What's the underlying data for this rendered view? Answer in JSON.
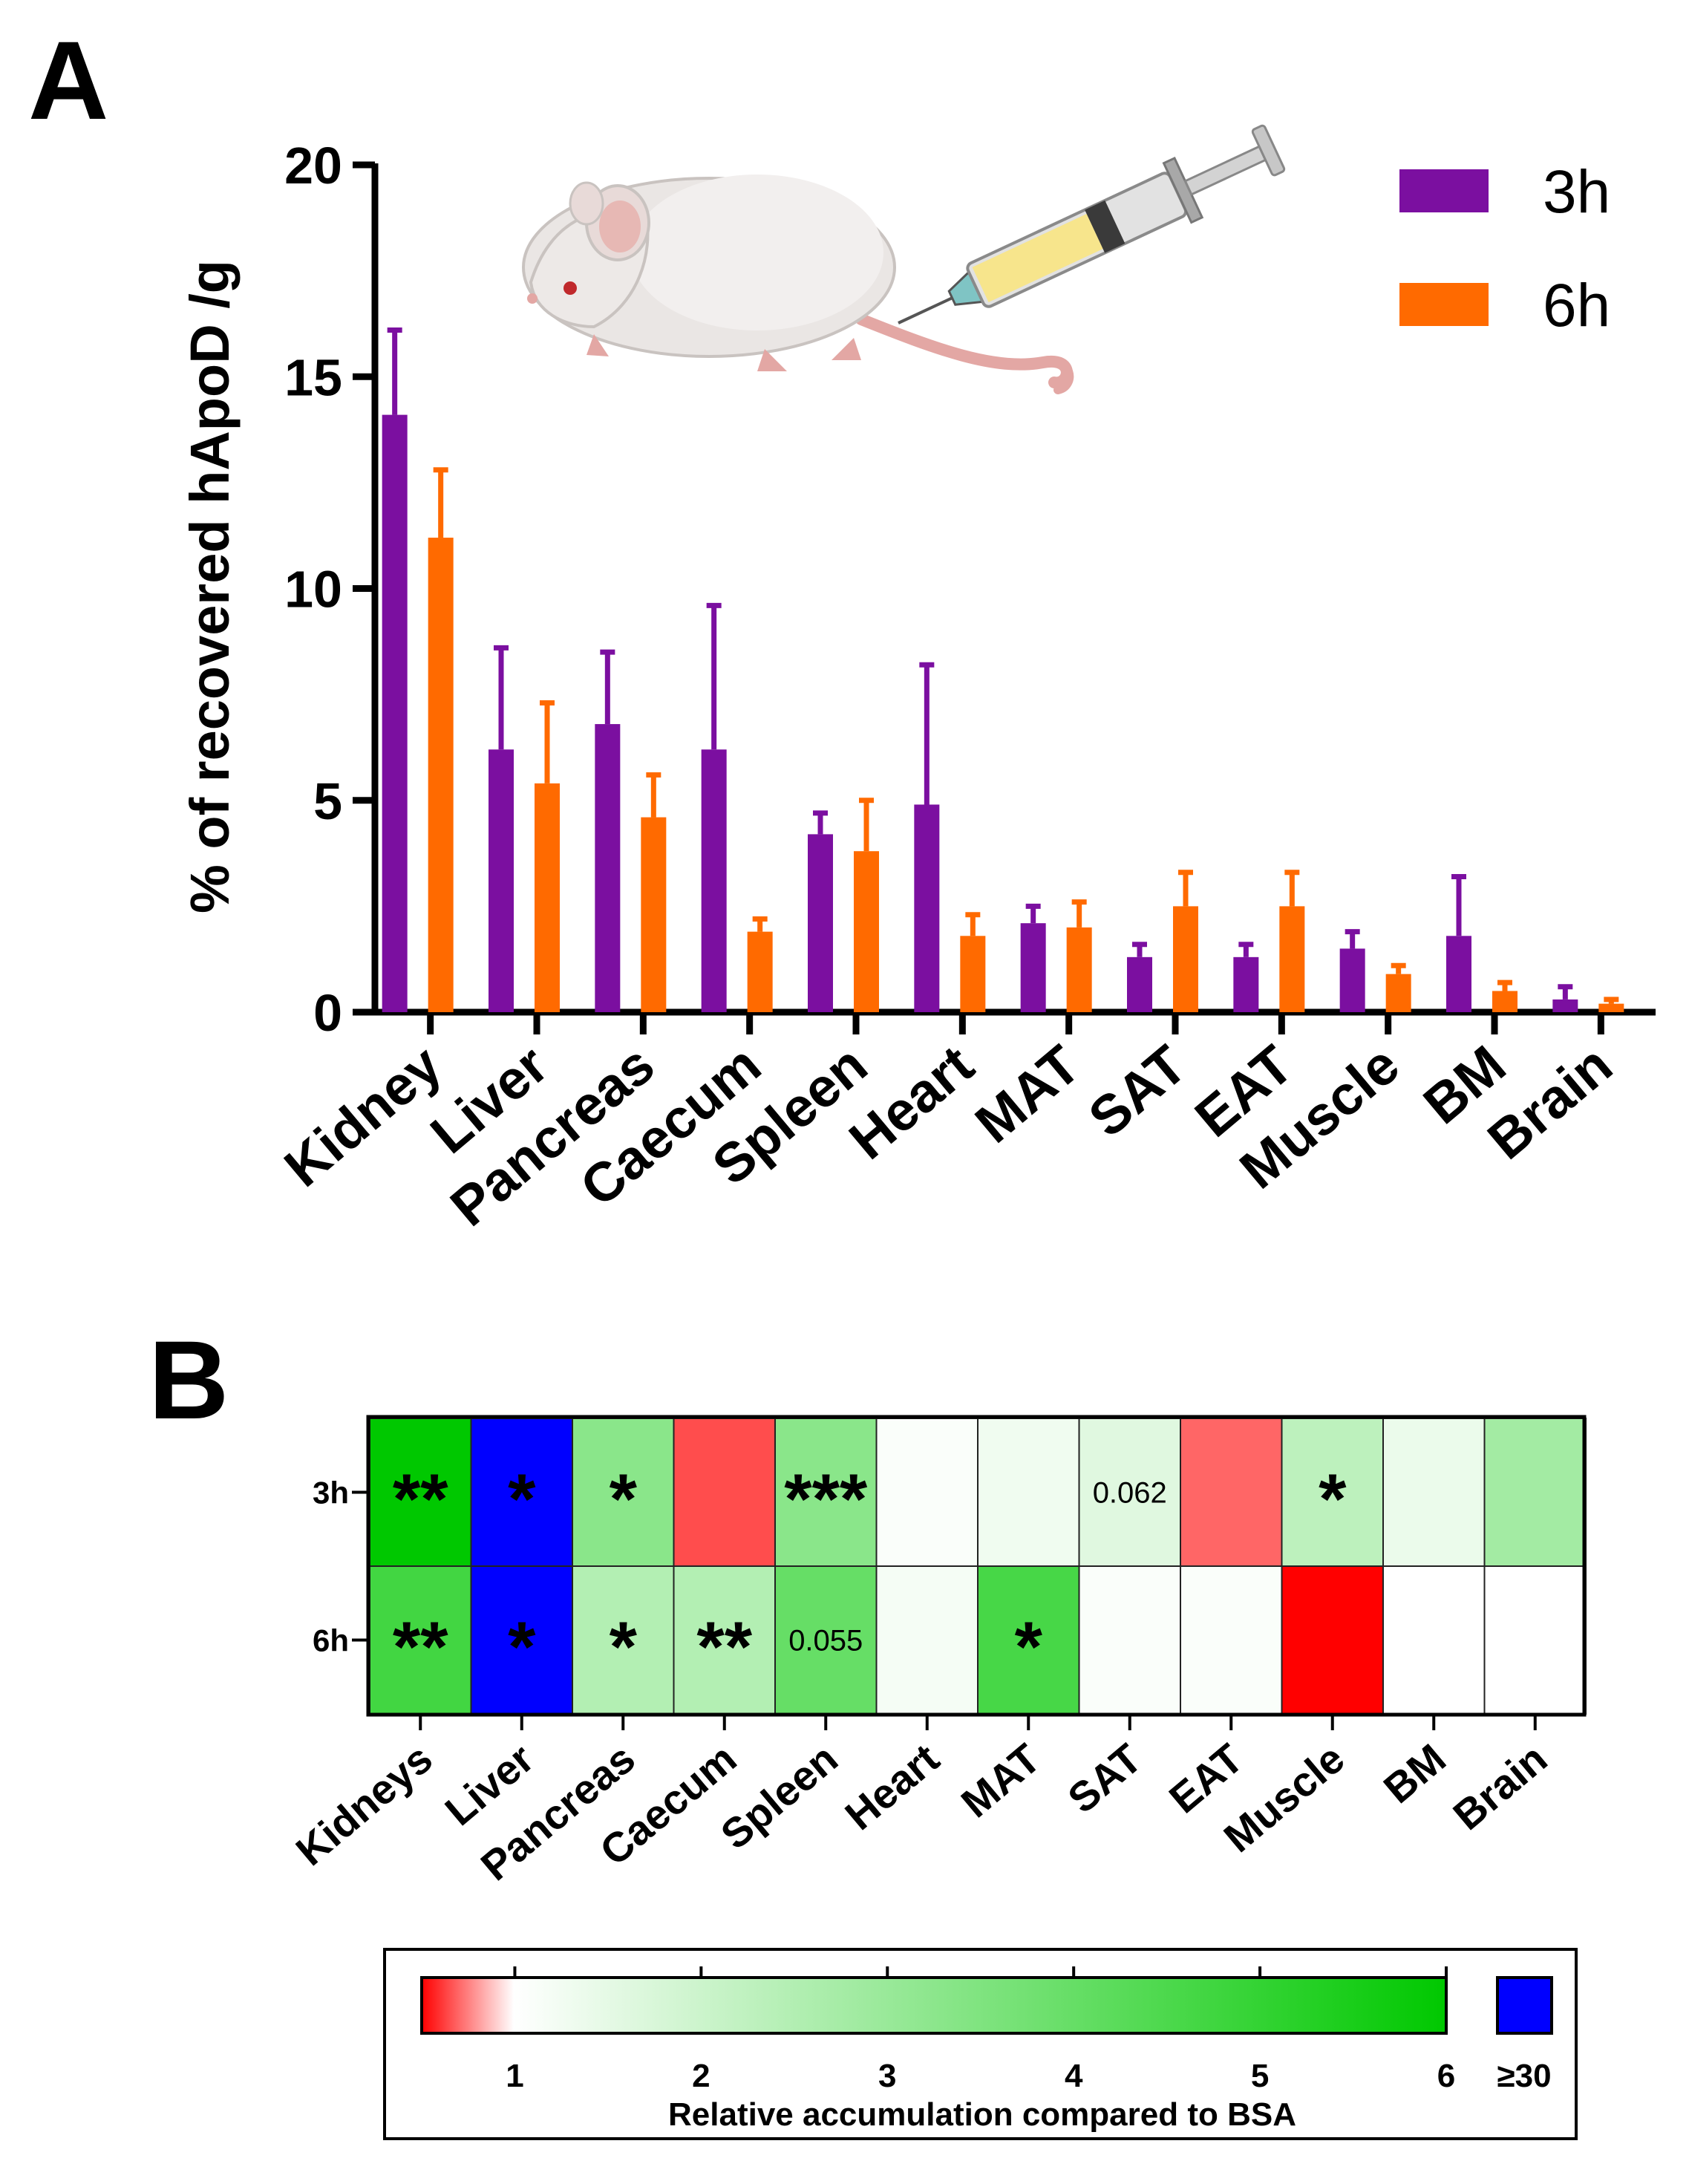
{
  "panels": {
    "a_label": "A",
    "b_label": "B"
  },
  "chart_data": [
    {
      "type": "bar",
      "panel": "A",
      "ylabel": "% of recovered hApoD /g",
      "ylim": [
        0,
        20
      ],
      "yticks": [
        "0",
        "5",
        "10",
        "15",
        "20"
      ],
      "categories": [
        "Kidney",
        "Liver",
        "Pancreas",
        "Caecum",
        "Spleen",
        "Heart",
        "MAT",
        "SAT",
        "EAT",
        "Muscle",
        "BM",
        "Brain"
      ],
      "series": [
        {
          "name": "3h",
          "color": "#7B0FA0",
          "values": [
            14.1,
            6.2,
            6.8,
            6.2,
            4.2,
            4.9,
            2.1,
            1.3,
            1.3,
            1.5,
            1.8,
            0.3
          ],
          "errors": [
            2.0,
            2.4,
            1.7,
            3.4,
            0.5,
            3.3,
            0.4,
            0.3,
            0.3,
            0.4,
            1.4,
            0.3
          ]
        },
        {
          "name": "6h",
          "color": "#FF6A00",
          "values": [
            11.2,
            5.4,
            4.6,
            1.9,
            3.8,
            1.8,
            2.0,
            2.5,
            2.5,
            0.9,
            0.5,
            0.2
          ],
          "errors": [
            1.6,
            1.9,
            1.0,
            0.3,
            1.2,
            0.5,
            0.6,
            0.8,
            0.8,
            0.2,
            0.2,
            0.1
          ]
        }
      ],
      "legend_position": "top-right",
      "illustration": "mouse-with-syringe"
    },
    {
      "type": "heatmap",
      "panel": "B",
      "rows": [
        "3h",
        "6h"
      ],
      "columns": [
        "Kidneys",
        "Liver",
        "Pancreas",
        "Caecum",
        "Spleen",
        "Heart",
        "MAT",
        "SAT",
        "EAT",
        "Muscle",
        "BM",
        "Brain"
      ],
      "values": [
        [
          6.0,
          30,
          3.3,
          0.65,
          3.3,
          1.1,
          1.3,
          1.6,
          0.7,
          2.3,
          1.4,
          2.8
        ],
        [
          4.7,
          30,
          2.5,
          2.5,
          4.0,
          1.2,
          4.6,
          1.1,
          1.1,
          0.5,
          1.0,
          1.0
        ]
      ],
      "annotations": [
        [
          "**",
          "*",
          "*",
          "",
          "***",
          "",
          "",
          "0.062",
          "",
          "*",
          "",
          ""
        ],
        [
          "**",
          "*",
          "*",
          "**",
          "0.055",
          "",
          "*",
          "",
          "",
          "",
          "",
          ""
        ]
      ],
      "colorbar": {
        "label": "Relative accumulation compared to BSA",
        "ticks": [
          "1",
          "2",
          "3",
          "4",
          "5",
          "6"
        ],
        "tick_values": [
          1,
          2,
          3,
          4,
          5,
          6
        ],
        "range": [
          0.5,
          6
        ],
        "special_label": "≥30",
        "special_color": "#0000FF",
        "low_color": "#FF0000",
        "mid_color": "#FFFFFF",
        "high_color": "#00C800"
      }
    }
  ]
}
